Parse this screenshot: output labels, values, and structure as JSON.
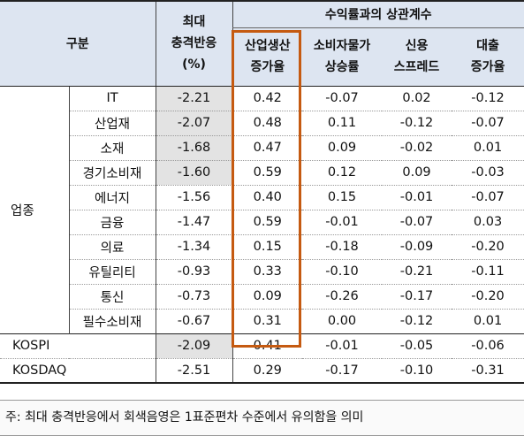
{
  "header": {
    "group_label": "구분",
    "shock_label_line1": "최대",
    "shock_label_line2": "충격반응",
    "shock_label_line3": "(%)",
    "corr_group_label": "수익률과의 상관계수",
    "columns": [
      {
        "line1": "산업생산",
        "line2": "증가율"
      },
      {
        "line1": "소비자물가",
        "line2": "상승률"
      },
      {
        "line1": "신용",
        "line2": "스프레드"
      },
      {
        "line1": "대출",
        "line2": "증가율"
      }
    ]
  },
  "sector_group_label": "업종",
  "sectors": [
    {
      "name": "IT",
      "shock": "-2.21",
      "shaded": true,
      "corr": [
        "0.42",
        "-0.07",
        "0.02",
        "-0.12"
      ]
    },
    {
      "name": "산업재",
      "shock": "-2.07",
      "shaded": true,
      "corr": [
        "0.48",
        "0.11",
        "-0.12",
        "-0.07"
      ]
    },
    {
      "name": "소재",
      "shock": "-1.68",
      "shaded": true,
      "corr": [
        "0.47",
        "0.09",
        "-0.02",
        "0.01"
      ]
    },
    {
      "name": "경기소비재",
      "shock": "-1.60",
      "shaded": true,
      "corr": [
        "0.59",
        "0.12",
        "0.09",
        "-0.03"
      ]
    },
    {
      "name": "에너지",
      "shock": "-1.56",
      "shaded": false,
      "corr": [
        "0.40",
        "0.15",
        "-0.01",
        "-0.07"
      ]
    },
    {
      "name": "금융",
      "shock": "-1.47",
      "shaded": false,
      "corr": [
        "0.59",
        "-0.01",
        "-0.07",
        "0.03"
      ]
    },
    {
      "name": "의료",
      "shock": "-1.34",
      "shaded": false,
      "corr": [
        "0.15",
        "-0.18",
        "-0.09",
        "-0.20"
      ]
    },
    {
      "name": "유틸리티",
      "shock": "-0.93",
      "shaded": false,
      "corr": [
        "0.33",
        "-0.10",
        "-0.21",
        "-0.11"
      ]
    },
    {
      "name": "통신",
      "shock": "-0.73",
      "shaded": false,
      "corr": [
        "0.09",
        "-0.26",
        "-0.17",
        "-0.20"
      ]
    },
    {
      "name": "필수소비재",
      "shock": "-0.67",
      "shaded": false,
      "corr": [
        "0.31",
        "0.00",
        "-0.12",
        "0.01"
      ]
    }
  ],
  "markets": [
    {
      "name": "KOSPI",
      "shock": "-2.09",
      "shaded": true,
      "corr": [
        "0.41",
        "-0.01",
        "-0.05",
        "-0.06"
      ]
    },
    {
      "name": "KOSDAQ",
      "shock": "-2.51",
      "shaded": false,
      "corr": [
        "0.29",
        "-0.17",
        "-0.10",
        "-0.31"
      ]
    }
  ],
  "note": "주: 최대 충격반응에서 회색음영은 1표준편차 수준에서 유의함을 의미",
  "colors": {
    "header_bg": "#dde5f1",
    "significant_shade": "#e3e3e3",
    "highlight_border": "#c55a11"
  }
}
